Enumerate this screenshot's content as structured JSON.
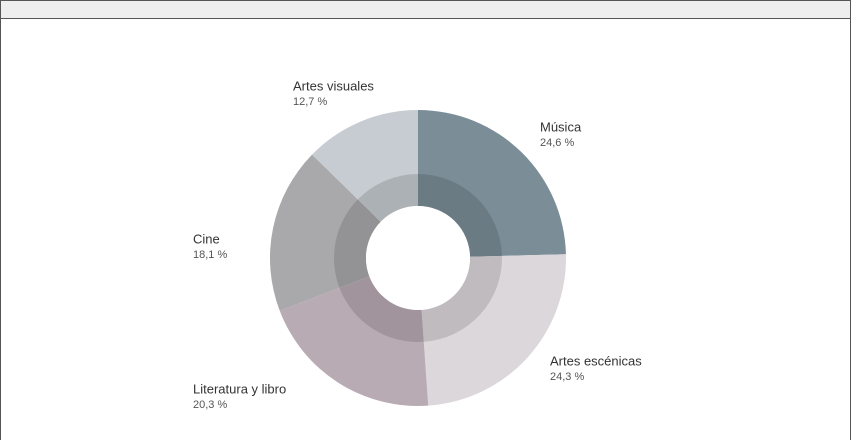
{
  "chart_data": {
    "type": "donut",
    "categories": [
      "Música",
      "Artes escénicas",
      "Literatura y libro",
      "Cine",
      "Artes visuales"
    ],
    "values": [
      24.6,
      24.3,
      20.3,
      18.1,
      12.7
    ],
    "value_labels": [
      "24,6 %",
      "24,3 %",
      "20,3 %",
      "18,1 %",
      "12,7 %"
    ],
    "colors": [
      "#7b8e98",
      "#dcd7db",
      "#b9abb4",
      "#a9a9ac",
      "#c6ccd2"
    ]
  }
}
